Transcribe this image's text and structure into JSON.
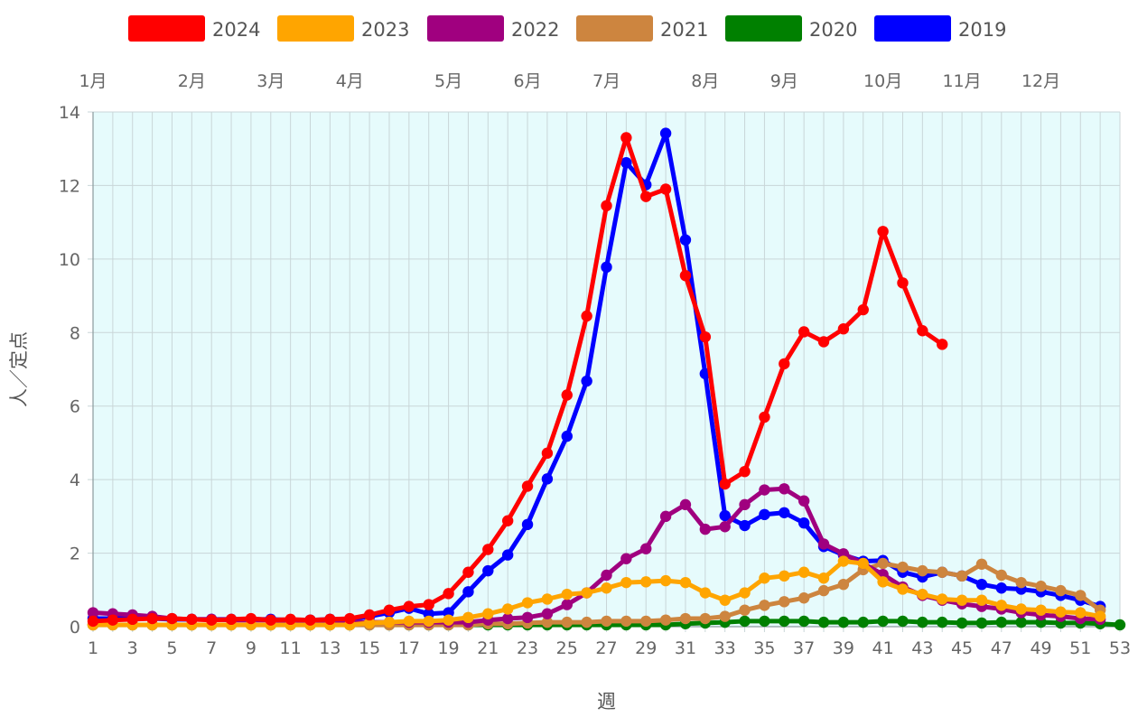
{
  "chart_data": {
    "type": "line",
    "xlabel": "週",
    "ylabel": "人／定点",
    "xlim": [
      1,
      53
    ],
    "ylim": [
      0,
      14
    ],
    "y_ticks": [
      0,
      2,
      4,
      6,
      8,
      10,
      12,
      14
    ],
    "x_ticks": [
      "1",
      "3",
      "5",
      "7",
      "9",
      "11",
      "13",
      "15",
      "17",
      "19",
      "21",
      "23",
      "25",
      "27",
      "29",
      "31",
      "33",
      "35",
      "37",
      "39",
      "41",
      "43",
      "45",
      "47",
      "49",
      "51",
      "53"
    ],
    "grid": true,
    "plot_background": "#e6fbfc",
    "legend_position": "top",
    "month_labels": [
      {
        "label": "1月",
        "week": 1
      },
      {
        "label": "2月",
        "week": 6
      },
      {
        "label": "3月",
        "week": 10
      },
      {
        "label": "4月",
        "week": 14
      },
      {
        "label": "5月",
        "week": 19
      },
      {
        "label": "6月",
        "week": 23
      },
      {
        "label": "7月",
        "week": 27
      },
      {
        "label": "8月",
        "week": 32
      },
      {
        "label": "9月",
        "week": 36
      },
      {
        "label": "10月",
        "week": 41
      },
      {
        "label": "11月",
        "week": 45
      },
      {
        "label": "12月",
        "week": 49
      }
    ],
    "series": [
      {
        "name": "2024",
        "color": "#ff0000",
        "values": [
          0.15,
          0.18,
          0.2,
          0.22,
          0.22,
          0.2,
          0.18,
          0.2,
          0.22,
          0.18,
          0.2,
          0.18,
          0.2,
          0.22,
          0.32,
          0.45,
          0.55,
          0.6,
          0.9,
          1.48,
          2.1,
          2.88,
          3.82,
          4.72,
          6.3,
          8.45,
          11.45,
          13.3,
          11.7,
          11.9,
          9.55,
          7.88,
          3.88,
          4.22,
          5.7,
          7.15,
          8.02,
          7.75,
          8.1,
          8.62,
          10.75,
          9.35,
          8.05,
          7.68
        ]
      },
      {
        "name": "2023",
        "color": "#ffa500",
        "values": [
          0.05,
          0.05,
          0.05,
          0.05,
          0.05,
          0.05,
          0.05,
          0.05,
          0.05,
          0.05,
          0.05,
          0.05,
          0.05,
          0.05,
          0.1,
          0.12,
          0.15,
          0.15,
          0.18,
          0.25,
          0.35,
          0.48,
          0.65,
          0.75,
          0.88,
          0.92,
          1.05,
          1.2,
          1.22,
          1.25,
          1.2,
          0.92,
          0.72,
          0.92,
          1.32,
          1.38,
          1.48,
          1.32,
          1.78,
          1.72,
          1.22,
          1.02,
          0.88,
          0.75,
          0.72,
          0.72,
          0.58,
          0.48,
          0.45,
          0.4,
          0.38,
          0.28
        ]
      },
      {
        "name": "2022",
        "color": "#a0007f",
        "values": [
          0.38,
          0.35,
          0.32,
          0.28,
          0.22,
          0.2,
          0.2,
          0.18,
          0.18,
          0.18,
          0.15,
          0.15,
          0.12,
          0.12,
          0.12,
          0.12,
          0.12,
          0.12,
          0.12,
          0.12,
          0.18,
          0.22,
          0.25,
          0.35,
          0.6,
          0.92,
          1.4,
          1.85,
          2.12,
          3.0,
          3.32,
          2.65,
          2.72,
          3.32,
          3.72,
          3.75,
          3.42,
          2.25,
          1.98,
          1.72,
          1.42,
          1.08,
          0.85,
          0.72,
          0.62,
          0.55,
          0.48,
          0.38,
          0.32,
          0.28,
          0.22,
          0.2
        ]
      },
      {
        "name": "2021",
        "color": "#cd853f",
        "values": [
          0.05,
          0.05,
          0.05,
          0.05,
          0.05,
          0.05,
          0.05,
          0.05,
          0.05,
          0.05,
          0.05,
          0.05,
          0.05,
          0.05,
          0.05,
          0.05,
          0.05,
          0.05,
          0.05,
          0.05,
          0.08,
          0.08,
          0.1,
          0.12,
          0.12,
          0.12,
          0.15,
          0.15,
          0.15,
          0.18,
          0.22,
          0.22,
          0.28,
          0.45,
          0.58,
          0.68,
          0.78,
          0.98,
          1.15,
          1.55,
          1.72,
          1.62,
          1.52,
          1.48,
          1.38,
          1.7,
          1.4,
          1.2,
          1.1,
          0.98,
          0.85,
          0.45
        ]
      },
      {
        "name": "2020",
        "color": "#008000",
        "values": [
          0.05,
          0.05,
          0.05,
          0.05,
          0.05,
          0.05,
          0.05,
          0.05,
          0.05,
          0.05,
          0.05,
          0.05,
          0.05,
          0.05,
          0.05,
          0.05,
          0.05,
          0.05,
          0.05,
          0.05,
          0.05,
          0.05,
          0.05,
          0.05,
          0.05,
          0.05,
          0.05,
          0.05,
          0.05,
          0.05,
          0.08,
          0.1,
          0.12,
          0.15,
          0.15,
          0.15,
          0.15,
          0.12,
          0.12,
          0.12,
          0.15,
          0.15,
          0.12,
          0.12,
          0.1,
          0.1,
          0.12,
          0.12,
          0.12,
          0.1,
          0.1,
          0.08,
          0.05
        ]
      },
      {
        "name": "2019",
        "color": "#0000ff",
        "values": [
          0.22,
          0.22,
          0.22,
          0.22,
          0.2,
          0.2,
          0.2,
          0.2,
          0.2,
          0.2,
          0.18,
          0.18,
          0.2,
          0.2,
          0.28,
          0.38,
          0.5,
          0.35,
          0.38,
          0.95,
          1.52,
          1.95,
          2.78,
          4.02,
          5.18,
          6.68,
          9.78,
          12.62,
          12.02,
          13.42,
          10.52,
          6.88,
          3.02,
          2.75,
          3.05,
          3.1,
          2.82,
          2.18,
          1.95,
          1.78,
          1.8,
          1.48,
          1.35,
          1.48,
          1.38,
          1.15,
          1.05,
          1.02,
          0.95,
          0.85,
          0.72,
          0.55
        ]
      }
    ]
  }
}
